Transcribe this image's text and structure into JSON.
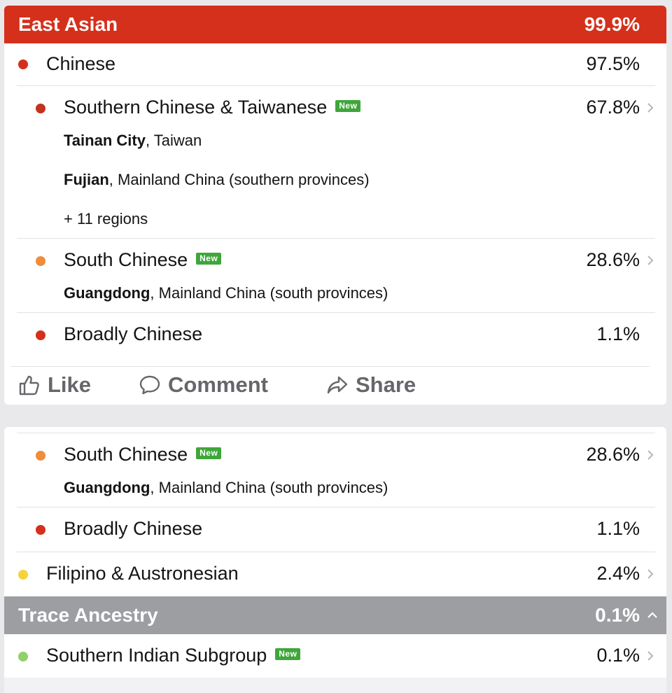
{
  "card1": {
    "header": {
      "label": "East Asian",
      "pct": "99.9%",
      "color": "#d4301b"
    },
    "chinese": {
      "label": "Chinese",
      "pct": "97.5%",
      "dot_color": "#d4301b"
    },
    "southern_chinese": {
      "label": "Southern Chinese & Taiwanese",
      "badge": "New",
      "pct": "67.8%",
      "dot_color": "#c2321d",
      "region1_bold": "Tainan City",
      "region1_rest": ", Taiwan",
      "region2_bold": "Fujian",
      "region2_rest": ", Mainland China (southern provinces)",
      "more_regions": "+ 11 regions"
    },
    "south_chinese": {
      "label": "South Chinese",
      "badge": "New",
      "pct": "28.6%",
      "dot_color": "#f08c3a",
      "region_bold": "Guangdong",
      "region_rest": ", Mainland China (south provinces)"
    },
    "broadly_chinese": {
      "label": "Broadly Chinese",
      "pct": "1.1%",
      "dot_color": "#d4301b"
    },
    "actions": {
      "like": "Like",
      "comment": "Comment",
      "share": "Share"
    }
  },
  "card2": {
    "south_chinese": {
      "label": "South Chinese",
      "badge": "New",
      "pct": "28.6%",
      "dot_color": "#f08c3a",
      "region_bold": "Guangdong",
      "region_rest": ", Mainland China (south provinces)"
    },
    "broadly_chinese": {
      "label": "Broadly Chinese",
      "pct": "1.1%",
      "dot_color": "#d4301b"
    },
    "filipino": {
      "label": "Filipino & Austronesian",
      "pct": "2.4%",
      "dot_color": "#f6d33b"
    },
    "trace_header": {
      "label": "Trace Ancestry",
      "pct": "0.1%",
      "color": "#9d9ea2"
    },
    "southern_indian": {
      "label": "Southern Indian Subgroup",
      "badge": "New",
      "pct": "0.1%",
      "dot_color": "#8fd26b"
    }
  }
}
